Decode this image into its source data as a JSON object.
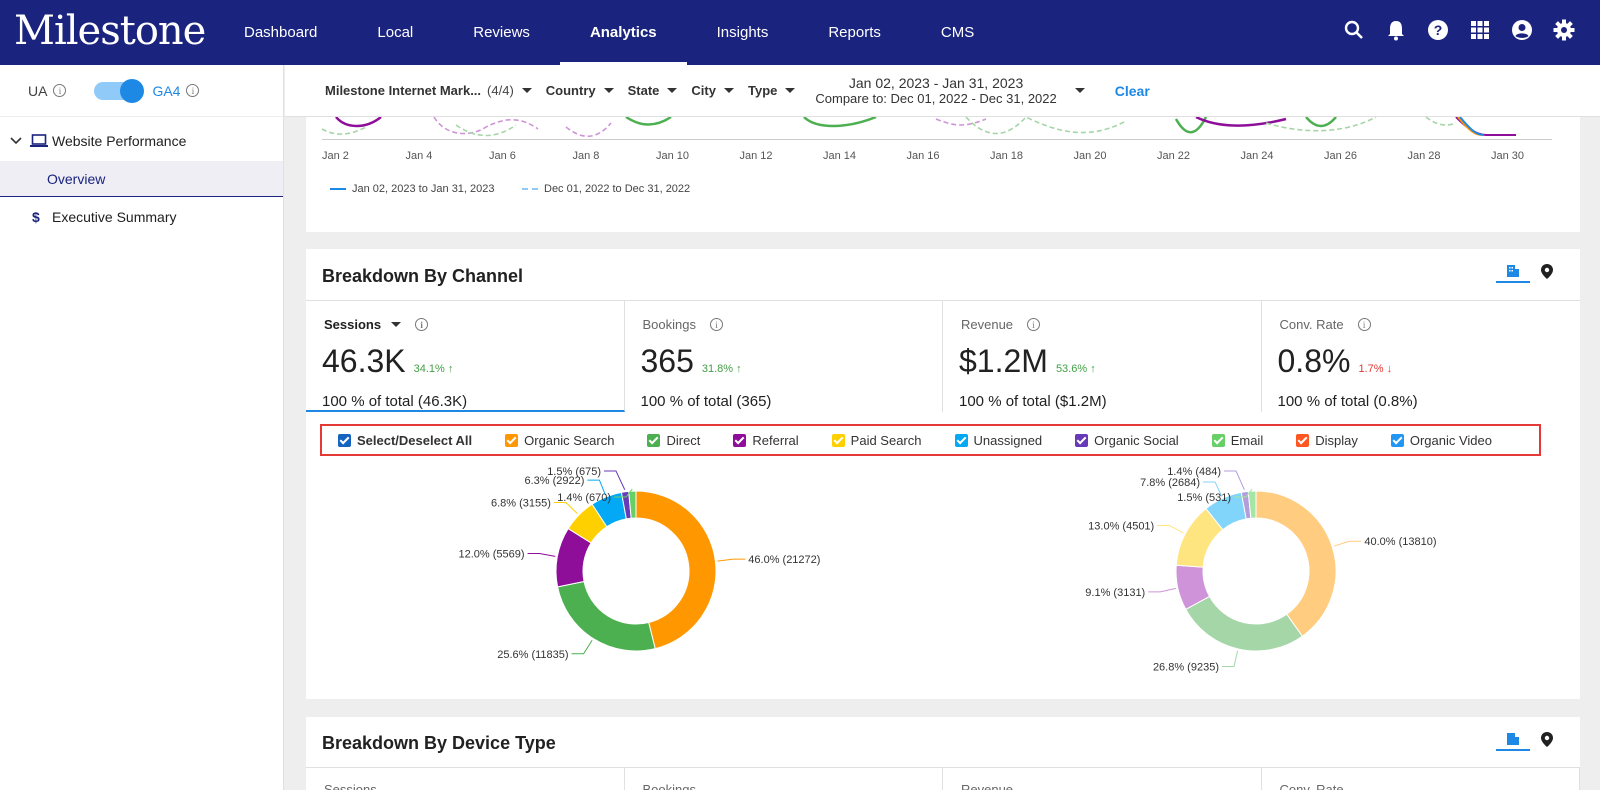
{
  "app": {
    "logo": "Milestone",
    "nav": [
      "Dashboard",
      "Local",
      "Reviews",
      "Analytics",
      "Insights",
      "Reports",
      "CMS"
    ],
    "active_nav": "Analytics",
    "icons": [
      "search-icon",
      "bell-icon",
      "help-icon",
      "apps-grid-icon",
      "account-icon",
      "settings-gear-icon"
    ]
  },
  "sidebar": {
    "ua_label": "UA",
    "ga4_label": "GA4",
    "section": "Website Performance",
    "overview": "Overview",
    "executive": "Executive Summary"
  },
  "filters": {
    "account": "Milestone Internet Mark...",
    "account_count": "(4/4)",
    "country": "Country",
    "state": "State",
    "city": "City",
    "type": "Type",
    "date_range": "Jan 02, 2023 - Jan 31, 2023",
    "compare": "Compare to: Dec 01, 2022 - Dec 31, 2022",
    "clear": "Clear"
  },
  "trend": {
    "ticks": [
      "Jan 2",
      "Jan 4",
      "Jan 6",
      "Jan 8",
      "Jan 10",
      "Jan 12",
      "Jan 14",
      "Jan 16",
      "Jan 18",
      "Jan 20",
      "Jan 22",
      "Jan 24",
      "Jan 26",
      "Jan 28",
      "Jan 30"
    ],
    "legend_current": "Jan 02, 2023 to Jan 31, 2023",
    "legend_compare": "Dec 01, 2022 to Dec 31, 2022"
  },
  "channel": {
    "title": "Breakdown By Channel",
    "metrics": [
      {
        "label": "Sessions",
        "value": "46.3K",
        "change": "34.1%",
        "dir": "up",
        "total": "100 % of total (46.3K)"
      },
      {
        "label": "Bookings",
        "value": "365",
        "change": "31.8%",
        "dir": "up",
        "total": "100 % of total (365)"
      },
      {
        "label": "Revenue",
        "value": "$1.2M",
        "change": "53.6%",
        "dir": "up",
        "total": "100 % of total ($1.2M)"
      },
      {
        "label": "Conv. Rate",
        "value": "0.8%",
        "change": "1.7%",
        "dir": "down",
        "total": "100 % of total (0.8%)"
      }
    ],
    "legend": [
      {
        "label": "Select/Deselect All",
        "color": "#1565c0"
      },
      {
        "label": "Organic Search",
        "color": "#ff9800"
      },
      {
        "label": "Direct",
        "color": "#4caf50"
      },
      {
        "label": "Referral",
        "color": "#8e0e9a"
      },
      {
        "label": "Paid Search",
        "color": "#ffd000"
      },
      {
        "label": "Unassigned",
        "color": "#03a9f4"
      },
      {
        "label": "Organic Social",
        "color": "#673ab7"
      },
      {
        "label": "Email",
        "color": "#66d066"
      },
      {
        "label": "Display",
        "color": "#ff5722"
      },
      {
        "label": "Organic Video",
        "color": "#2196f3"
      }
    ]
  },
  "chart_data": [
    {
      "type": "pie",
      "categories": [
        "Organic Search",
        "Direct",
        "Referral",
        "Paid Search",
        "Unassigned",
        "Organic Social",
        "Email"
      ],
      "values": [
        21272,
        11835,
        5569,
        3155,
        2922,
        675,
        670
      ],
      "labels": [
        "46.0% (21272)",
        "25.6% (11835)",
        "12.0% (5569)",
        "6.8% (3155)",
        "6.3% (2922)",
        "1.5% (675)",
        "1.4% (670)"
      ],
      "colors": [
        "#ff9800",
        "#4caf50",
        "#8e0e9a",
        "#ffd000",
        "#03a9f4",
        "#673ab7",
        "#66d066"
      ]
    },
    {
      "type": "pie",
      "categories": [
        "Organic Search",
        "Direct",
        "Referral",
        "Paid Search",
        "Unassigned",
        "Organic Social",
        "Email"
      ],
      "values": [
        13810,
        9235,
        3131,
        4501,
        2684,
        484,
        531
      ],
      "labels": [
        "40.0% (13810)",
        "26.8% (9235)",
        "9.1% (3131)",
        "13.0% (4501)",
        "7.8% (2684)",
        "1.4% (484)",
        "1.5% (531)"
      ],
      "colors": [
        "#ffcc80",
        "#a5d6a7",
        "#ce93d8",
        "#ffe57f",
        "#81d4fa",
        "#b39ddb",
        "#a5e5a5"
      ]
    }
  ],
  "device": {
    "title": "Breakdown By Device Type",
    "metrics": [
      "Sessions",
      "Bookings",
      "Revenue",
      "Conv. Rate"
    ]
  }
}
